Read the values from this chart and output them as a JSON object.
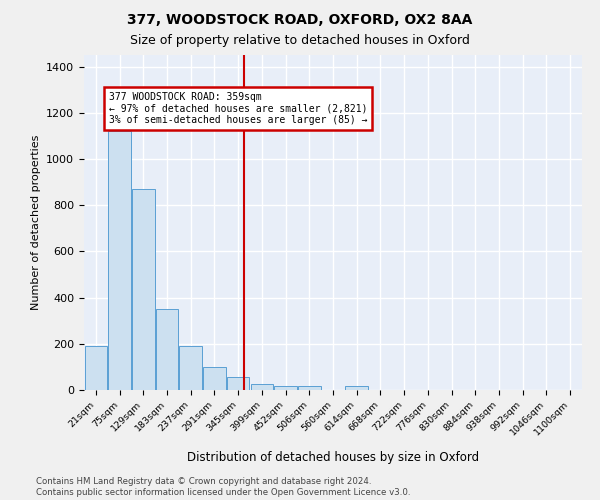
{
  "title1": "377, WOODSTOCK ROAD, OXFORD, OX2 8AA",
  "title2": "Size of property relative to detached houses in Oxford",
  "xlabel": "Distribution of detached houses by size in Oxford",
  "ylabel": "Number of detached properties",
  "bar_color": "#cce0f0",
  "bar_edge_color": "#5a9fd4",
  "bg_color": "#e8eef8",
  "grid_color": "#ffffff",
  "bins": [
    "21sqm",
    "75sqm",
    "129sqm",
    "183sqm",
    "237sqm",
    "291sqm",
    "345sqm",
    "399sqm",
    "452sqm",
    "506sqm",
    "560sqm",
    "614sqm",
    "668sqm",
    "722sqm",
    "776sqm",
    "830sqm",
    "884sqm",
    "938sqm",
    "992sqm",
    "1046sqm",
    "1100sqm"
  ],
  "values": [
    192,
    1120,
    870,
    350,
    190,
    100,
    55,
    25,
    18,
    18,
    0,
    18,
    0,
    0,
    0,
    0,
    0,
    0,
    0,
    0,
    0
  ],
  "vline_x": 6.25,
  "vline_color": "#cc0000",
  "annotation_line1": "377 WOODSTOCK ROAD: 359sqm",
  "annotation_line2": "← 97% of detached houses are smaller (2,821)",
  "annotation_line3": "3% of semi-detached houses are larger (85) →",
  "annotation_box_edgecolor": "#cc0000",
  "footer1": "Contains HM Land Registry data © Crown copyright and database right 2024.",
  "footer2": "Contains public sector information licensed under the Open Government Licence v3.0.",
  "ylim": [
    0,
    1450
  ],
  "yticks": [
    0,
    200,
    400,
    600,
    800,
    1000,
    1200,
    1400
  ],
  "fig_bg": "#f0f0f0"
}
